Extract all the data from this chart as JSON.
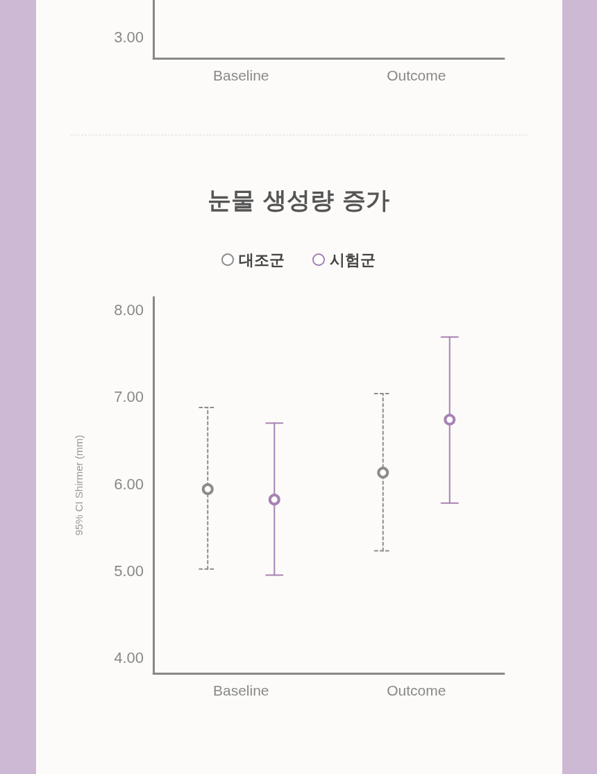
{
  "chart_data": [
    {
      "type": "other",
      "categories": [
        "Baseline",
        "Outcome"
      ],
      "annotations": [
        "3.00"
      ]
    },
    {
      "type": "scatter",
      "title": "눈물 생성량 증가",
      "ylabel": "95% CI Shirmer (mm)",
      "categories": [
        "Baseline",
        "Outcome"
      ],
      "ylim": [
        3.82,
        8.15
      ],
      "yticks": [
        {
          "value": 4,
          "label": "4.00"
        },
        {
          "value": 5,
          "label": "5.00"
        },
        {
          "value": 6,
          "label": "6.00"
        },
        {
          "value": 7,
          "label": "7.00"
        },
        {
          "value": 8,
          "label": "8.00"
        }
      ],
      "grid": false,
      "legend": "top",
      "marker": "circle",
      "series": [
        {
          "name": "대조군",
          "color": "#8c8c8c",
          "line_style": "dashed",
          "values": [
            5.94,
            6.13
          ],
          "errors": [
            [
              5.02,
              6.88
            ],
            [
              5.23,
              7.04
            ]
          ]
        },
        {
          "name": "시험군",
          "color": "#a682b4",
          "line_style": "solid",
          "values": [
            5.82,
            6.74
          ],
          "errors": [
            [
              4.95,
              6.7
            ],
            [
              5.78,
              7.69
            ]
          ]
        }
      ]
    }
  ]
}
